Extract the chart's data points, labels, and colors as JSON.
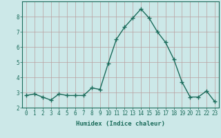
{
  "x": [
    0,
    1,
    2,
    3,
    4,
    5,
    6,
    7,
    8,
    9,
    10,
    11,
    12,
    13,
    14,
    15,
    16,
    17,
    18,
    19,
    20,
    21,
    22,
    23
  ],
  "y": [
    2.8,
    2.9,
    2.7,
    2.5,
    2.9,
    2.8,
    2.8,
    2.8,
    3.3,
    3.2,
    4.9,
    6.5,
    7.3,
    7.9,
    8.5,
    7.9,
    7.0,
    6.3,
    5.2,
    3.7,
    2.7,
    2.7,
    3.1,
    2.4
  ],
  "line_color": "#1a6b5a",
  "marker": "+",
  "marker_size": 4,
  "marker_linewidth": 1.0,
  "bg_color": "#cce8e8",
  "grid_color": "#b8a0a0",
  "xlabel": "Humidex (Indice chaleur)",
  "ylabel": "",
  "xlim": [
    -0.5,
    23.5
  ],
  "ylim": [
    2.0,
    9.0
  ],
  "yticks": [
    2,
    3,
    4,
    5,
    6,
    7,
    8
  ],
  "xticks": [
    0,
    1,
    2,
    3,
    4,
    5,
    6,
    7,
    8,
    9,
    10,
    11,
    12,
    13,
    14,
    15,
    16,
    17,
    18,
    19,
    20,
    21,
    22,
    23
  ],
  "tick_color": "#1a6b5a",
  "label_fontsize": 6.5,
  "tick_fontsize": 5.5,
  "spine_color": "#1a6b5a",
  "linewidth": 1.0
}
